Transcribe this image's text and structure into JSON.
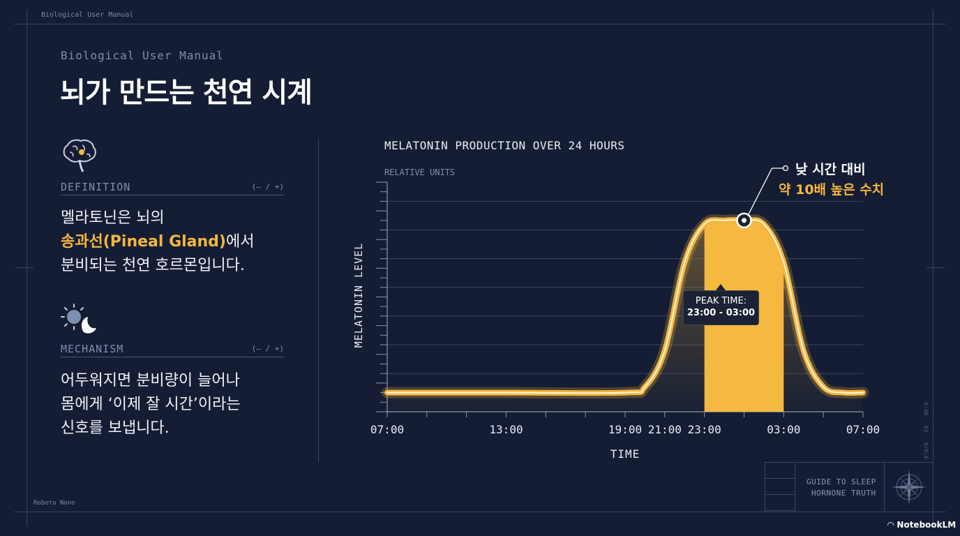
{
  "header": {
    "top_tag": "Biological User Manual",
    "subtitle": "Biological User Manual",
    "title": "뇌가 만드는 천연 시계"
  },
  "sections": [
    {
      "icon": "brain-icon",
      "label": "DEFINITION",
      "control": "(– / +)",
      "lines": [
        "멜라토닌은 뇌의",
        "송과선(Pineal Gland)",
        "에서",
        "분비되는 천연 호르몬입니다."
      ]
    },
    {
      "icon": "sun-moon-icon",
      "label": "MECHANISM",
      "control": "(– / +)",
      "lines": [
        "어두워지면 분비량이 늘어나",
        "몸에게 ‘이제 잘 시간’이라는",
        "신호를 보냅니다."
      ]
    }
  ],
  "chart_data": {
    "type": "area",
    "title": "MELATONIN PRODUCTION OVER 24 HOURS",
    "ylabel": "MELATONIN LEVEL",
    "yunit": "RELATIVE UNITS",
    "xlabel": "TIME",
    "xticks": [
      "07:00",
      "13:00",
      "19:00",
      "21:00",
      "23:00",
      "03:00",
      "07:00"
    ],
    "x_hours": [
      0,
      6,
      12,
      14,
      16,
      20,
      24
    ],
    "series": [
      {
        "x": [
          0,
          6,
          12,
          13,
          14,
          15,
          16,
          17,
          18,
          19,
          20,
          21,
          22,
          23,
          24
        ],
        "values": [
          1,
          1,
          1,
          1.3,
          3.2,
          7.8,
          9.8,
          10,
          10,
          9.8,
          7.8,
          3.2,
          1.3,
          1,
          1
        ]
      }
    ],
    "ylim": [
      0,
      12
    ],
    "highlight": {
      "from": 16,
      "to": 20,
      "label_1": "PEAK TIME:",
      "label_2": "23:00 - 03:00"
    },
    "annotation": {
      "line_1": "낮 시간 대비",
      "line_2": "약 10배 높은 수치"
    },
    "colors": {
      "line": "#f4b640",
      "highlight": "#f5b840",
      "grid": "#3a4664"
    }
  },
  "footer": {
    "font_note": "Roboto Nono",
    "guide_line_1": "GUIDE TO SLEEP",
    "guide_line_2": "HORNONE TRUTH",
    "side_note": "9:48 · 81 · 8/0:6",
    "brand": "NotebookLM"
  }
}
